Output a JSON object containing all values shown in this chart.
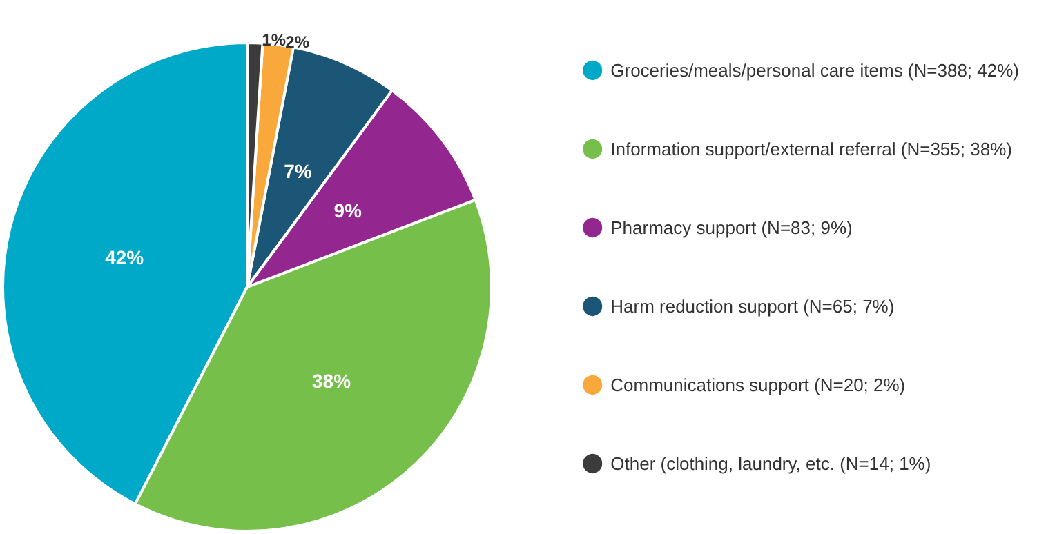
{
  "chart_data": {
    "type": "pie",
    "categories": [
      "Groceries/meals/personal care items (N=388; 42%)",
      "Information support/external referral (N=355; 38%)",
      "Pharmacy support (N=83; 9%)",
      "Harm reduction support (N=65; 7%)",
      "Communications support (N=20; 2%)",
      "Other (clothing, laundry, etc. (N=14; 1%)"
    ],
    "values": [
      42,
      38,
      9,
      7,
      2,
      1
    ],
    "value_labels": [
      "42%",
      "38%",
      "9%",
      "7%",
      "2%",
      "1%"
    ],
    "colors": [
      "#00a9c8",
      "#77bf4b",
      "#93278f",
      "#1c5677",
      "#f9a83b",
      "#3b3b3b"
    ],
    "legend": "right"
  }
}
